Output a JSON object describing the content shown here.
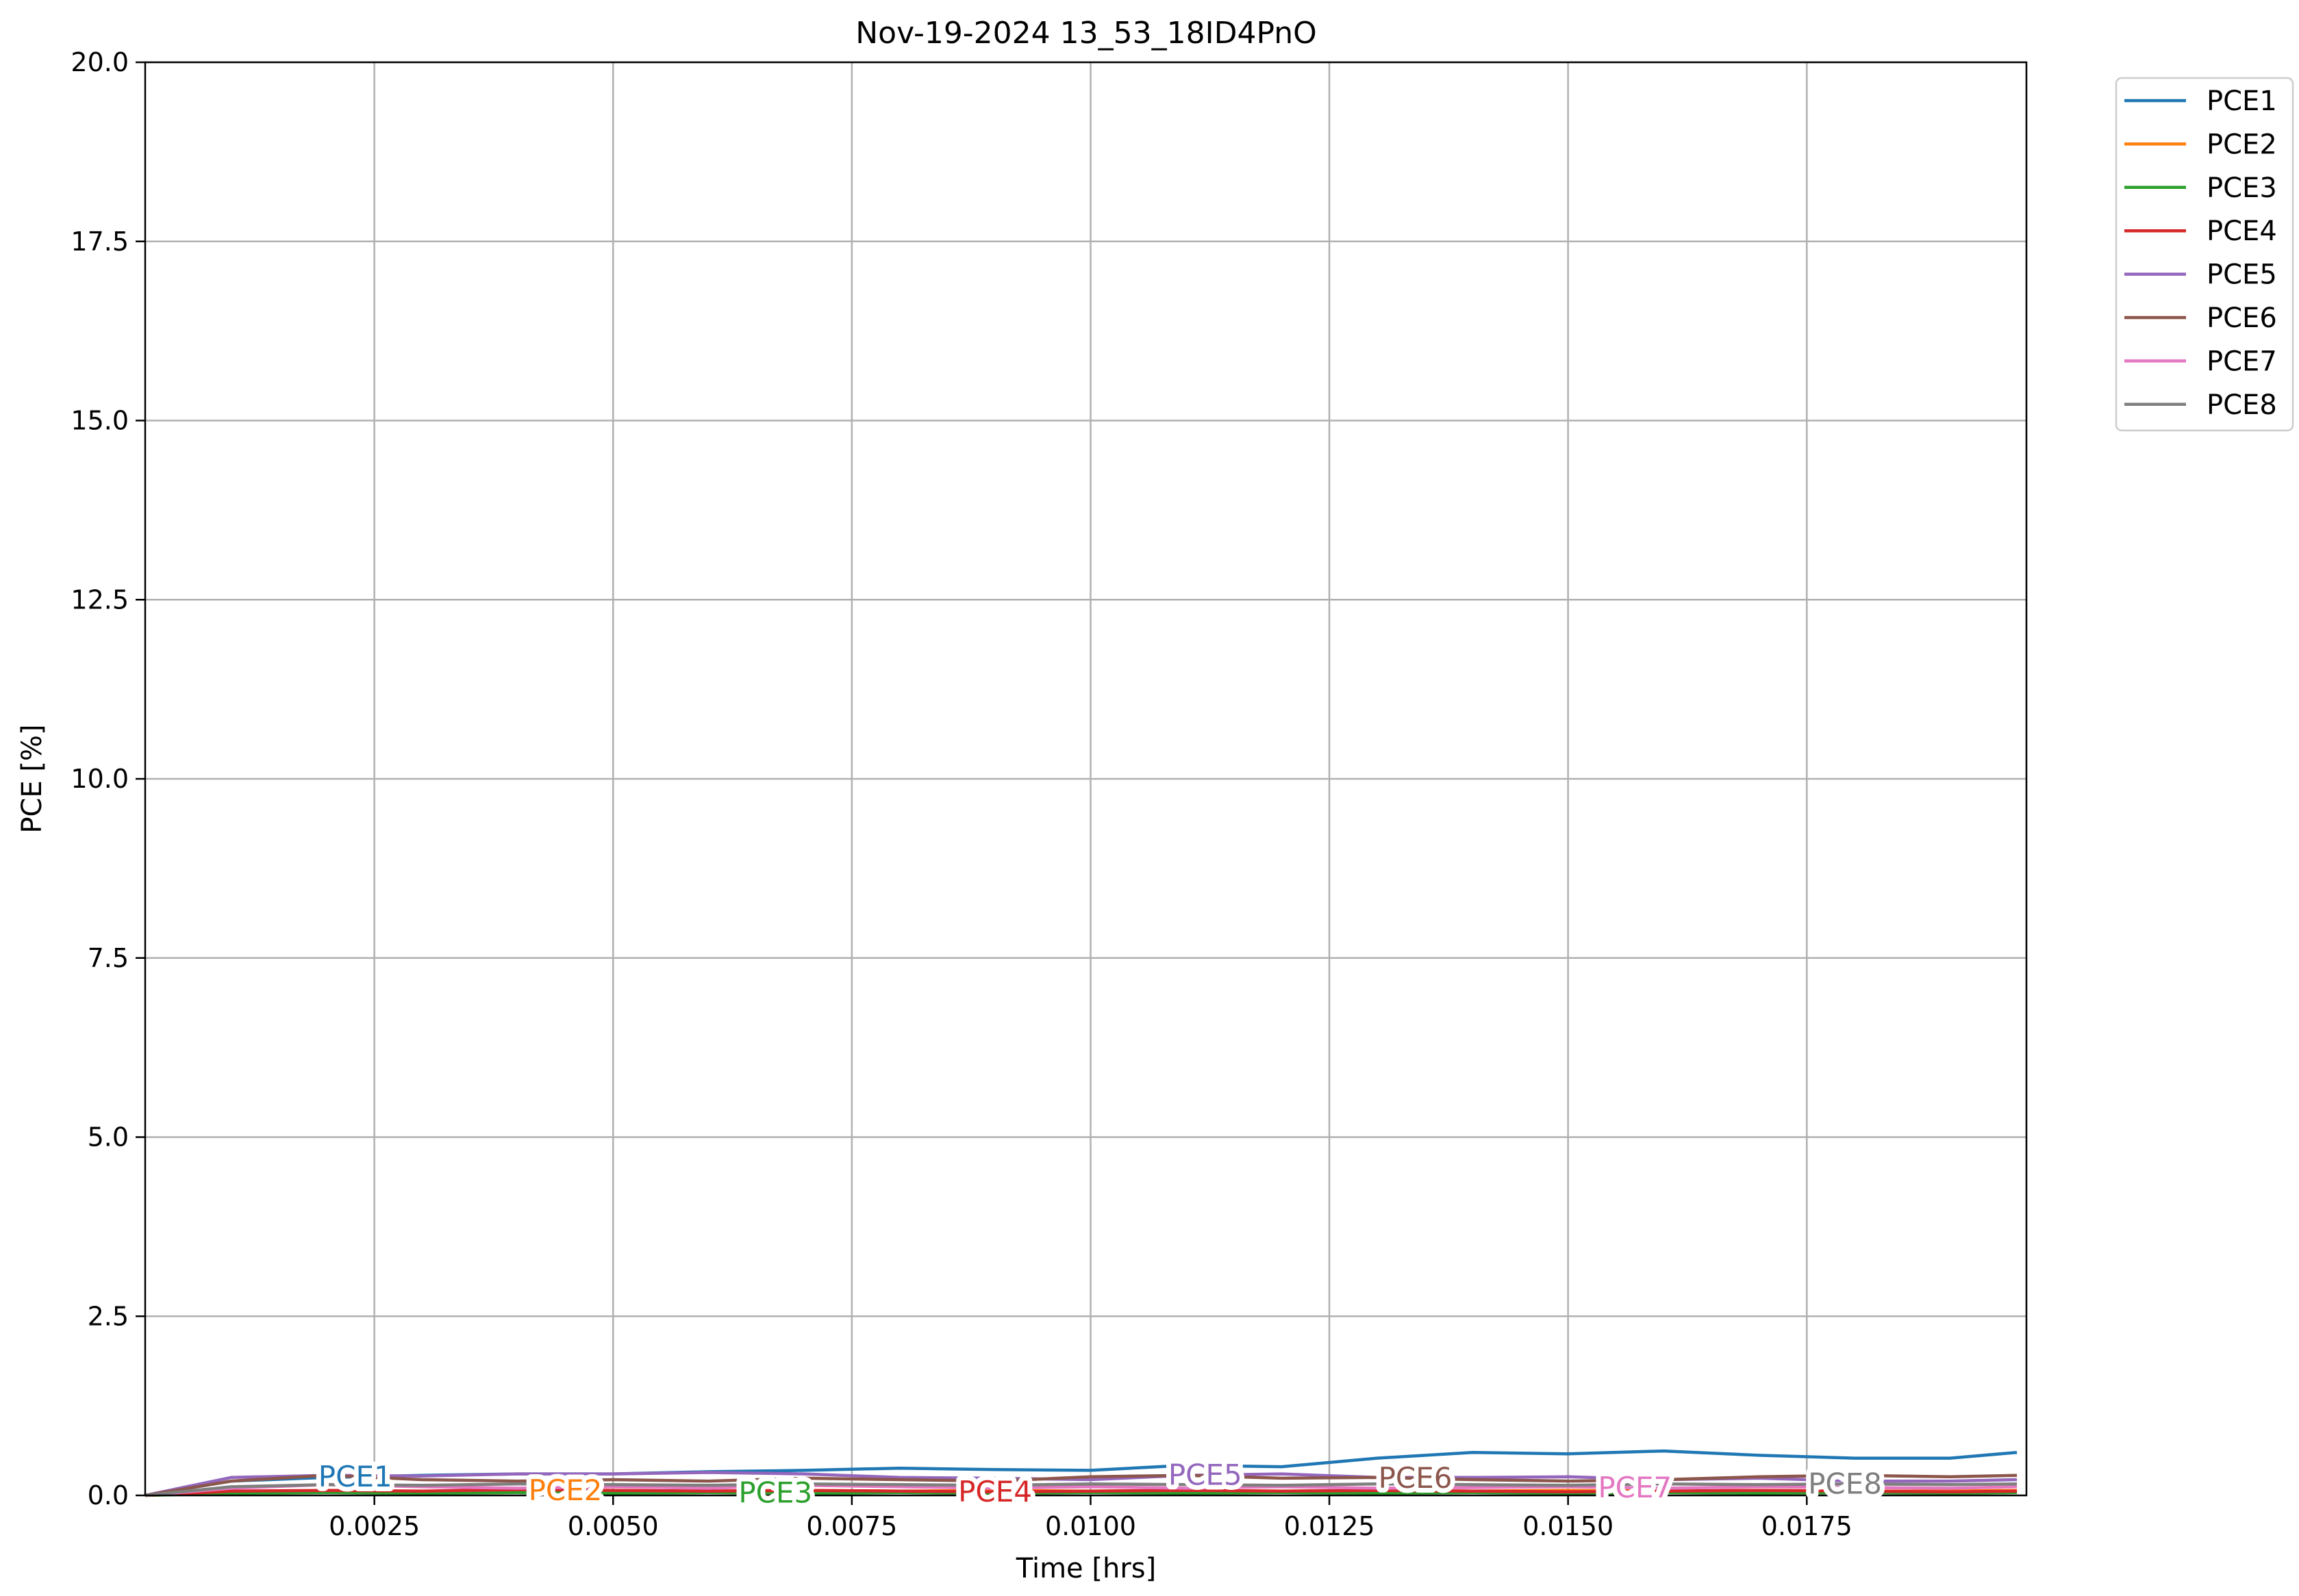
{
  "chart_data": {
    "type": "line",
    "title": "Nov-19-2024 13_53_18ID4PnO",
    "xlabel": "Time [hrs]",
    "ylabel": "PCE [%]",
    "xlim": [
      0.0001,
      0.0198
    ],
    "ylim": [
      0,
      20
    ],
    "xticks": [
      0.0025,
      0.005,
      0.0075,
      0.01,
      0.0125,
      0.015,
      0.0175
    ],
    "xtick_labels": [
      "0.0025",
      "0.0050",
      "0.0075",
      "0.0100",
      "0.0125",
      "0.0150",
      "0.0175"
    ],
    "yticks": [
      0,
      2.5,
      5,
      7.5,
      10,
      12.5,
      15,
      17.5,
      20
    ],
    "ytick_labels": [
      "0.0",
      "2.5",
      "5.0",
      "7.5",
      "10.0",
      "12.5",
      "15.0",
      "17.5",
      "20.0"
    ],
    "grid": true,
    "legend_position": "outside-top-right",
    "x": [
      0.0001,
      0.001,
      0.002,
      0.003,
      0.004,
      0.005,
      0.006,
      0.007,
      0.008,
      0.009,
      0.01,
      0.011,
      0.012,
      0.013,
      0.014,
      0.015,
      0.016,
      0.017,
      0.018,
      0.019,
      0.0197
    ],
    "series": [
      {
        "name": "PCE1",
        "color": "#1f77b4",
        "label_x": 0.0023,
        "values": [
          0.0,
          0.2,
          0.25,
          0.28,
          0.3,
          0.3,
          0.33,
          0.35,
          0.38,
          0.36,
          0.35,
          0.42,
          0.4,
          0.52,
          0.6,
          0.58,
          0.62,
          0.56,
          0.52,
          0.52,
          0.6
        ]
      },
      {
        "name": "PCE2",
        "color": "#ff7f0e",
        "label_x": 0.0045,
        "values": [
          0.0,
          0.05,
          0.06,
          0.05,
          0.06,
          0.07,
          0.06,
          0.07,
          0.06,
          0.07,
          0.06,
          0.07,
          0.06,
          0.07,
          0.06,
          0.07,
          0.06,
          0.07,
          0.06,
          0.06,
          0.07
        ]
      },
      {
        "name": "PCE3",
        "color": "#2ca02c",
        "label_x": 0.0067,
        "values": [
          0.0,
          0.03,
          0.04,
          0.03,
          0.04,
          0.03,
          0.04,
          0.03,
          0.04,
          0.03,
          0.04,
          0.03,
          0.04,
          0.03,
          0.04,
          0.03,
          0.04,
          0.03,
          0.04,
          0.03,
          0.04
        ]
      },
      {
        "name": "PCE4",
        "color": "#d62728",
        "label_x": 0.009,
        "values": [
          0.0,
          0.06,
          0.07,
          0.06,
          0.08,
          0.07,
          0.06,
          0.07,
          0.06,
          0.05,
          0.06,
          0.07,
          0.06,
          0.07,
          0.06,
          0.05,
          0.06,
          0.07,
          0.06,
          0.05,
          0.06
        ]
      },
      {
        "name": "PCE5",
        "color": "#9467bd",
        "label_x": 0.0112,
        "values": [
          0.0,
          0.25,
          0.28,
          0.27,
          0.3,
          0.3,
          0.32,
          0.3,
          0.25,
          0.24,
          0.22,
          0.28,
          0.3,
          0.25,
          0.25,
          0.26,
          0.22,
          0.24,
          0.2,
          0.2,
          0.22
        ]
      },
      {
        "name": "PCE6",
        "color": "#8c564b",
        "label_x": 0.0134,
        "values": [
          0.0,
          0.2,
          0.28,
          0.22,
          0.2,
          0.22,
          0.2,
          0.24,
          0.22,
          0.2,
          0.26,
          0.28,
          0.24,
          0.25,
          0.22,
          0.2,
          0.22,
          0.26,
          0.28,
          0.26,
          0.28
        ]
      },
      {
        "name": "PCE7",
        "color": "#e377c2",
        "label_x": 0.0157,
        "values": [
          0.0,
          0.1,
          0.15,
          0.12,
          0.1,
          0.12,
          0.1,
          0.14,
          0.12,
          0.1,
          0.12,
          0.1,
          0.12,
          0.1,
          0.11,
          0.12,
          0.1,
          0.12,
          0.11,
          0.1,
          0.12
        ]
      },
      {
        "name": "PCE8",
        "color": "#7f7f7f",
        "label_x": 0.0179,
        "values": [
          0.0,
          0.12,
          0.15,
          0.14,
          0.16,
          0.15,
          0.14,
          0.16,
          0.15,
          0.14,
          0.16,
          0.15,
          0.14,
          0.16,
          0.15,
          0.14,
          0.16,
          0.15,
          0.16,
          0.15,
          0.16
        ]
      }
    ]
  }
}
